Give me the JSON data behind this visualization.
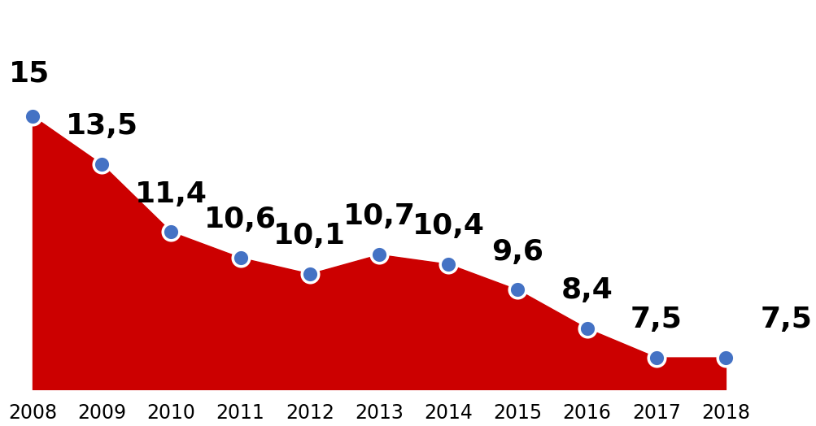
{
  "years": [
    2008,
    2009,
    2010,
    2011,
    2012,
    2013,
    2014,
    2015,
    2016,
    2017,
    2018
  ],
  "values": [
    15.0,
    13.5,
    11.4,
    10.6,
    10.1,
    10.7,
    10.4,
    9.6,
    8.4,
    7.5,
    7.5
  ],
  "labels": [
    "15",
    "13,5",
    "11,4",
    "10,6",
    "10,1",
    "10,7",
    "10,4",
    "9,6",
    "8,4",
    "7,5",
    "7,5"
  ],
  "label_ha": [
    "left",
    "left",
    "left",
    "left",
    "left",
    "left",
    "left",
    "left",
    "left",
    "left",
    "left"
  ],
  "label_dx": [
    -0.05,
    0.0,
    0.0,
    0.0,
    0.0,
    0.0,
    0.0,
    0.0,
    0.0,
    0.0,
    0.5
  ],
  "label_dy": [
    0.9,
    0.75,
    0.75,
    0.75,
    0.75,
    0.75,
    0.75,
    0.75,
    0.75,
    0.75,
    0.75
  ],
  "fill_color": "#cc0000",
  "dot_color": "#4472c4",
  "dot_size": 220,
  "label_fontsize": 26,
  "label_fontweight": "bold",
  "tick_fontsize": 17,
  "background_color": "#ffffff",
  "ylim_bottom": 6.5,
  "ylim_top": 18.5,
  "xlim_left": 2007.6,
  "xlim_right": 2018.6
}
